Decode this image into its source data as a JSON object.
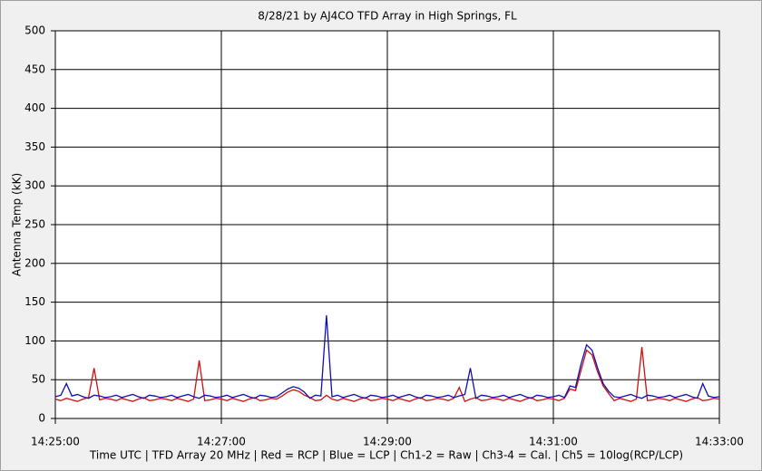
{
  "chart_data": {
    "type": "line",
    "title": "8/28/21  by  AJ4CO TFD Array  in  High Springs, FL",
    "y_label": "Antenna Temp (kK)",
    "x_label": "Time UTC | TFD Array 20 MHz | Red = RCP | Blue = LCP | Ch1-2 = Raw | Ch3-4 = Cal. | Ch5 = 10log(RCP/LCP)",
    "x": [
      "14:25:00",
      "14:25:04",
      "14:25:08",
      "14:25:12",
      "14:25:16",
      "14:25:20",
      "14:25:24",
      "14:25:28",
      "14:25:32",
      "14:25:36",
      "14:25:40",
      "14:25:44",
      "14:25:48",
      "14:25:52",
      "14:25:56",
      "14:26:00",
      "14:26:04",
      "14:26:08",
      "14:26:12",
      "14:26:16",
      "14:26:20",
      "14:26:24",
      "14:26:28",
      "14:26:32",
      "14:26:36",
      "14:26:40",
      "14:26:44",
      "14:26:48",
      "14:26:52",
      "14:26:56",
      "14:27:00",
      "14:27:04",
      "14:27:08",
      "14:27:12",
      "14:27:16",
      "14:27:20",
      "14:27:24",
      "14:27:28",
      "14:27:32",
      "14:27:36",
      "14:27:40",
      "14:27:44",
      "14:27:48",
      "14:27:52",
      "14:27:56",
      "14:28:00",
      "14:28:04",
      "14:28:08",
      "14:28:12",
      "14:28:16",
      "14:28:20",
      "14:28:24",
      "14:28:28",
      "14:28:32",
      "14:28:36",
      "14:28:40",
      "14:28:44",
      "14:28:48",
      "14:28:52",
      "14:28:56",
      "14:29:00",
      "14:29:04",
      "14:29:08",
      "14:29:12",
      "14:29:16",
      "14:29:20",
      "14:29:24",
      "14:29:28",
      "14:29:32",
      "14:29:36",
      "14:29:40",
      "14:29:44",
      "14:29:48",
      "14:29:52",
      "14:29:56",
      "14:30:00",
      "14:30:04",
      "14:30:08",
      "14:30:12",
      "14:30:16",
      "14:30:20",
      "14:30:24",
      "14:30:28",
      "14:30:32",
      "14:30:36",
      "14:30:40",
      "14:30:44",
      "14:30:48",
      "14:30:52",
      "14:30:56",
      "14:31:00",
      "14:31:04",
      "14:31:08",
      "14:31:12",
      "14:31:16",
      "14:31:20",
      "14:31:24",
      "14:31:28",
      "14:31:32",
      "14:31:36",
      "14:31:40",
      "14:31:44",
      "14:31:48",
      "14:31:52",
      "14:31:56",
      "14:32:00",
      "14:32:04",
      "14:32:08",
      "14:32:12",
      "14:32:16",
      "14:32:20",
      "14:32:24",
      "14:32:28",
      "14:32:32",
      "14:32:36",
      "14:32:40",
      "14:32:44",
      "14:32:48",
      "14:32:52",
      "14:32:56",
      "14:33:00"
    ],
    "series": [
      {
        "name": "Red = RCP",
        "color": "#d01010",
        "values": [
          25,
          23,
          26,
          24,
          22,
          25,
          27,
          65,
          24,
          26,
          25,
          23,
          26,
          24,
          22,
          25,
          27,
          23,
          24,
          26,
          25,
          23,
          26,
          24,
          22,
          25,
          75,
          23,
          24,
          26,
          25,
          23,
          26,
          24,
          22,
          25,
          27,
          23,
          24,
          26,
          25,
          29,
          34,
          37,
          35,
          30,
          27,
          23,
          24,
          30,
          25,
          23,
          26,
          24,
          22,
          25,
          27,
          23,
          24,
          26,
          25,
          23,
          26,
          24,
          22,
          25,
          27,
          23,
          24,
          26,
          25,
          23,
          26,
          40,
          22,
          25,
          27,
          23,
          24,
          26,
          25,
          23,
          26,
          24,
          22,
          25,
          27,
          23,
          24,
          26,
          25,
          23,
          26,
          38,
          36,
          62,
          88,
          82,
          60,
          42,
          32,
          23,
          26,
          24,
          22,
          25,
          92,
          23,
          24,
          26,
          25,
          23,
          26,
          24,
          22,
          25,
          27,
          23,
          24,
          26,
          25
        ]
      },
      {
        "name": "Blue = LCP",
        "color": "#1010b0",
        "values": [
          28,
          30,
          45,
          29,
          31,
          28,
          26,
          30,
          29,
          27,
          28,
          30,
          27,
          29,
          31,
          28,
          26,
          30,
          29,
          27,
          28,
          30,
          27,
          29,
          31,
          28,
          26,
          30,
          29,
          27,
          28,
          30,
          27,
          29,
          31,
          28,
          26,
          30,
          29,
          27,
          28,
          33,
          38,
          41,
          39,
          34,
          26,
          30,
          29,
          133,
          28,
          30,
          27,
          29,
          31,
          28,
          26,
          30,
          29,
          27,
          28,
          30,
          27,
          29,
          31,
          28,
          26,
          30,
          29,
          27,
          28,
          30,
          27,
          29,
          31,
          65,
          26,
          30,
          29,
          27,
          28,
          30,
          27,
          29,
          31,
          28,
          26,
          30,
          29,
          27,
          28,
          30,
          27,
          42,
          40,
          70,
          95,
          88,
          65,
          45,
          35,
          28,
          27,
          29,
          31,
          28,
          26,
          30,
          29,
          27,
          28,
          30,
          27,
          29,
          31,
          28,
          26,
          45,
          29,
          27,
          28
        ]
      }
    ],
    "xlim": [
      "14:25:00",
      "14:33:00"
    ],
    "xticks": [
      "14:25:00",
      "14:27:00",
      "14:29:00",
      "14:31:00",
      "14:33:00"
    ],
    "ylim": [
      0,
      500
    ],
    "yticks": [
      0,
      50,
      100,
      150,
      200,
      250,
      300,
      350,
      400,
      450,
      500
    ],
    "grid": true
  }
}
